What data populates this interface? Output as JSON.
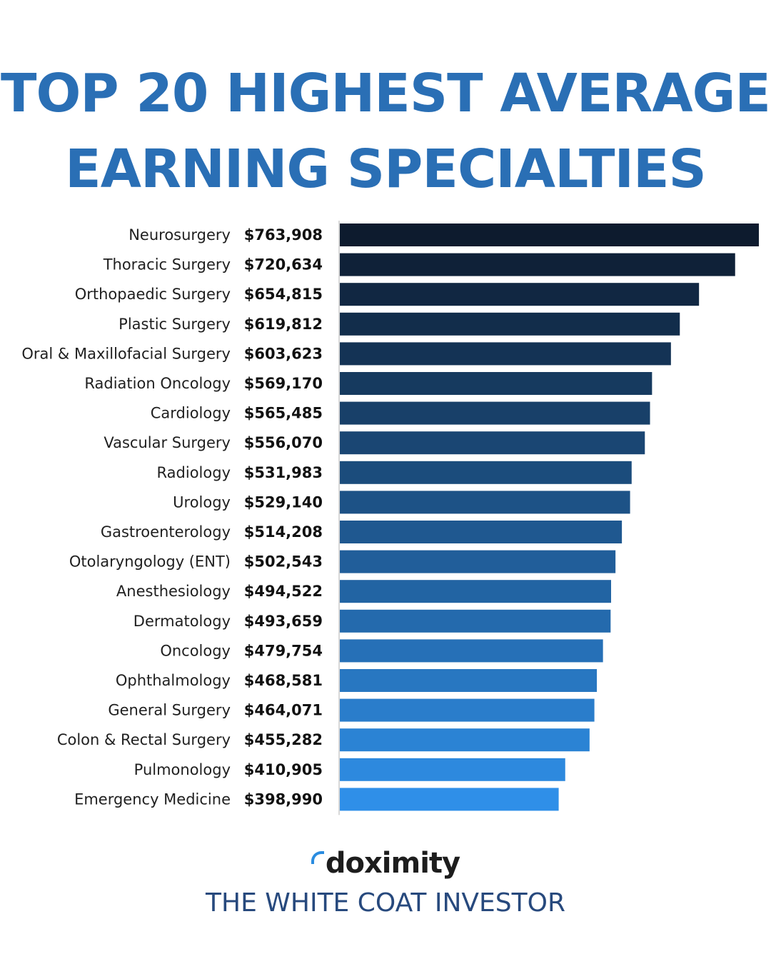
{
  "header": {
    "title_line1": "TOP 20 HIGHEST AVERAGE",
    "title_line2": "EARNING SPECIALTIES"
  },
  "footer": {
    "logo_text": "doximity",
    "credit": "THE WHITE COAT INVESTOR"
  },
  "colors": {
    "title": "#2a6fb5",
    "bar_start": "#0d1b2e",
    "bar_end": "#2f8fe8",
    "credit": "#27497d"
  },
  "chart_data": {
    "type": "bar",
    "orientation": "horizontal",
    "title": "TOP 20 HIGHEST AVERAGE EARNING SPECIALTIES",
    "xlim": [
      0,
      763908
    ],
    "categories": [
      "Neurosurgery",
      "Thoracic Surgery",
      "Orthopaedic Surgery",
      "Plastic Surgery",
      "Oral & Maxillofacial Surgery",
      "Radiation Oncology",
      "Cardiology",
      "Vascular Surgery",
      "Radiology",
      "Urology",
      "Gastroenterology",
      "Otolaryngology (ENT)",
      "Anesthesiology",
      "Dermatology",
      "Oncology",
      "Ophthalmology",
      "General Surgery",
      "Colon & Rectal Surgery",
      "Pulmonology",
      "Emergency Medicine"
    ],
    "values": [
      763908,
      720634,
      654815,
      619812,
      603623,
      569170,
      565485,
      556070,
      531983,
      529140,
      514208,
      502543,
      494522,
      493659,
      479754,
      468581,
      464071,
      455282,
      410905,
      398990
    ],
    "value_labels": [
      "$763,908",
      "$720,634",
      "$654,815",
      "$619,812",
      "$603,623",
      "$569,170",
      "$565,485",
      "$556,070",
      "$531,983",
      "$529,140",
      "$514,208",
      "$502,543",
      "$494,522",
      "$493,659",
      "$479,754",
      "$468,581",
      "$464,071",
      "$455,282",
      "$410,905",
      "$398,990"
    ]
  }
}
